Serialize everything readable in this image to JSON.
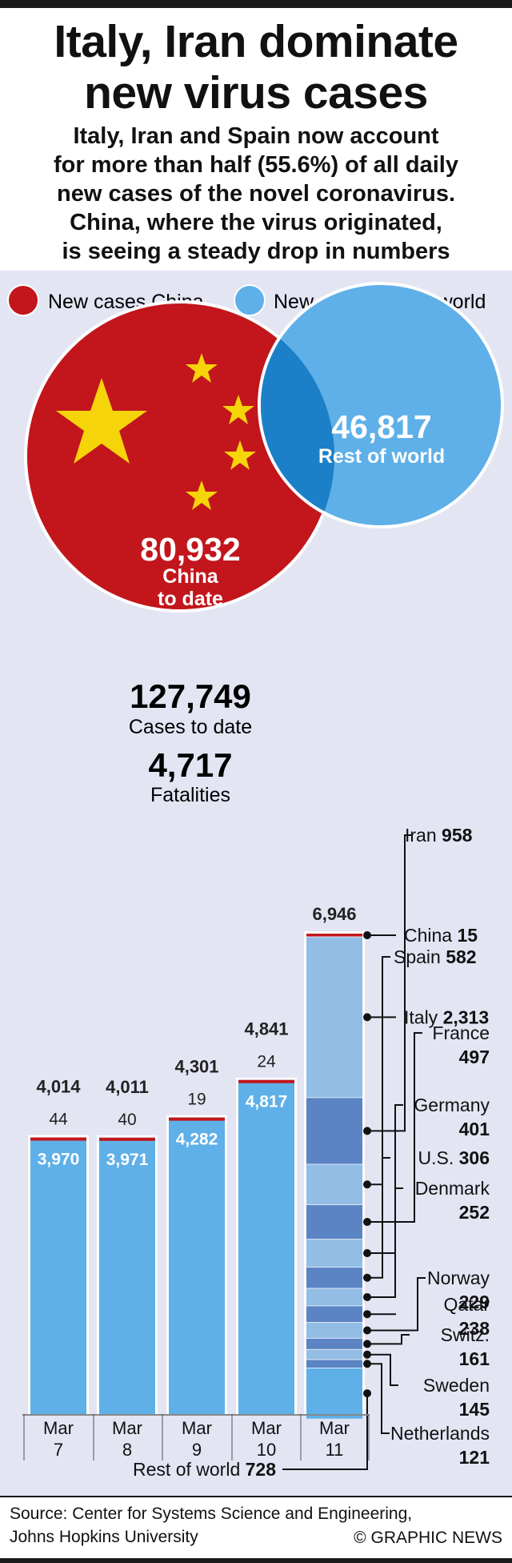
{
  "title_line1": "Italy, Iran dominate",
  "title_line2": "new virus cases",
  "subtitle_lines": [
    "Italy, Iran and Spain now account",
    "for more than half (55.6%) of all daily",
    "new cases of the novel coronavirus.",
    "China, where the virus originated,",
    "is seeing a steady drop in numbers"
  ],
  "legend": {
    "china": {
      "label": "New cases China",
      "color": "#c2161c"
    },
    "world": {
      "label": "New cases rest of world",
      "color": "#5fb0e8"
    }
  },
  "circles": {
    "china_value": "80,932",
    "china_label_line1": "China",
    "china_label_line2": "to date",
    "world_value": "46,817",
    "world_label": "Rest of world"
  },
  "totals": {
    "cases_value": "127,749",
    "cases_label": "Cases to date",
    "fatalities_value": "4,717",
    "fatalities_label": "Fatalities"
  },
  "source_line1": "Source: Center for Systems Science and Engineering,",
  "source_line2": "Johns Hopkins University",
  "copyright": "© GRAPHIC NEWS",
  "chart_data": {
    "type": "bar",
    "categories": [
      "Mar 7",
      "Mar 8",
      "Mar 9",
      "Mar 10",
      "Mar 11"
    ],
    "series": [
      {
        "name": "New cases China",
        "values": [
          44,
          40,
          19,
          24,
          15
        ],
        "color": "#c2161c"
      },
      {
        "name": "New cases rest of world",
        "values": [
          3970,
          3971,
          4282,
          4817,
          6931
        ],
        "color": "#5fb0e8"
      }
    ],
    "totals": [
      4014,
      4011,
      4301,
      4841,
      6946
    ],
    "ylim": [
      0,
      7000
    ],
    "mar11_breakdown": [
      {
        "name": "China",
        "value": 15
      },
      {
        "name": "Italy",
        "value": 2313
      },
      {
        "name": "Iran",
        "value": 958
      },
      {
        "name": "Spain",
        "value": 582
      },
      {
        "name": "France",
        "value": 497
      },
      {
        "name": "Germany",
        "value": 401
      },
      {
        "name": "U.S.",
        "value": 306
      },
      {
        "name": "Denmark",
        "value": 252
      },
      {
        "name": "Qatar",
        "value": 238
      },
      {
        "name": "Norway",
        "value": 229
      },
      {
        "name": "Switz.",
        "value": 161
      },
      {
        "name": "Sweden",
        "value": 145
      },
      {
        "name": "Netherlands",
        "value": 121
      },
      {
        "name": "Rest of world",
        "value": 728
      }
    ]
  }
}
